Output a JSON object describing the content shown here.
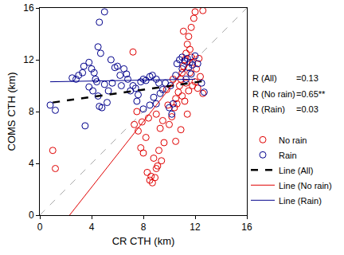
{
  "chart_data": {
    "type": "scatter",
    "xlabel": "CR CTH (km)",
    "ylabel": "COMS CTH (km)",
    "xlim": [
      0,
      16
    ],
    "ylim": [
      0,
      16
    ],
    "xticks": [
      0,
      4,
      8,
      12,
      16
    ],
    "yticks": [
      0,
      4,
      8,
      12,
      16
    ],
    "grid": false,
    "legend": "right",
    "annotations": [
      {
        "label": "R (All)",
        "value": "=0.13"
      },
      {
        "label": "R (No rain)",
        "value": "=0.65**"
      },
      {
        "label": "R (Rain)",
        "value": "=0.03"
      }
    ],
    "series": [
      {
        "name": "No rain",
        "type": "scatter",
        "color": "#e00000",
        "marker": "circle-open",
        "x": [
          1,
          1.2,
          7.2,
          7.5,
          7.3,
          7.6,
          7.8,
          8,
          8.2,
          7.9,
          8.3,
          8.5,
          8.6,
          8.7,
          8.9,
          9,
          9.1,
          8.8,
          9.2,
          9.4,
          9.6,
          9.3,
          9.5,
          9,
          8.4,
          10,
          10.2,
          10.4,
          10.5,
          10.7,
          10.8,
          10.9,
          11,
          11.1,
          11.2,
          11.3,
          11.4,
          11.5,
          11.7,
          11.9,
          12,
          12.6,
          11.6,
          11.8,
          11,
          11.2,
          11.5,
          11.8,
          12,
          12.2,
          12.4,
          12.6,
          11.3,
          10.6,
          9.8,
          10.3,
          11.6,
          12.1,
          12.3,
          11.4,
          10.9,
          10.5,
          9.9,
          11.1,
          11.7
        ],
        "y": [
          5,
          3.6,
          12.6,
          8,
          7,
          6.5,
          5.2,
          4.8,
          6,
          7.2,
          3.3,
          2.7,
          3,
          2.5,
          2.9,
          3.6,
          3.8,
          4.4,
          5,
          4.2,
          5.6,
          6.7,
          7.3,
          7.8,
          7.5,
          7,
          7.6,
          8.3,
          9,
          9.5,
          10,
          10.5,
          11,
          11.5,
          12,
          12.5,
          13.2,
          13.8,
          14.5,
          15.2,
          15.7,
          15.8,
          12.8,
          11.8,
          9.2,
          8.8,
          9.6,
          10,
          10.3,
          9.8,
          10.7,
          9.4,
          10.2,
          8.6,
          9.7,
          10.5,
          11,
          11.3,
          12.1,
          7.8,
          6.6,
          5.7,
          8.5,
          14.2,
          12.2
        ]
      },
      {
        "name": "Rain",
        "type": "scatter",
        "color": "#00008b",
        "marker": "circle-open",
        "x": [
          0.8,
          1.2,
          3.5,
          3.8,
          4.5,
          4.7,
          4.6,
          5,
          4.3,
          4.1,
          4.5,
          4.6,
          4.8,
          5.2,
          3,
          3.3,
          3.4,
          3.8,
          4,
          4.2,
          2.5,
          2.8,
          5.5,
          5.8,
          6,
          6.2,
          6.5,
          6.7,
          7,
          7.2,
          7.4,
          7.6,
          7.8,
          8,
          8.2,
          8.5,
          8.7,
          9,
          9.2,
          9.5,
          9.7,
          10,
          10.2,
          10.3,
          9,
          8.5,
          8,
          7.5,
          10.6,
          10.8,
          11,
          11.2,
          11.4,
          11.6,
          11.8,
          12,
          12.2,
          11.5,
          11,
          10.5,
          11.3,
          11.7,
          12.5,
          12.7,
          6.8,
          6.3,
          5.3,
          5.6,
          8.8,
          9.3,
          10.1,
          5,
          4.4
        ],
        "y": [
          8.5,
          8.1,
          6.9,
          9.9,
          13,
          12.5,
          14.9,
          15.7,
          10.5,
          9.6,
          9.2,
          8.4,
          8.3,
          8.7,
          10.8,
          11,
          11.5,
          11.8,
          11.3,
          11,
          10.6,
          10.5,
          12,
          11.4,
          11.5,
          10.8,
          11.3,
          10.9,
          9.6,
          10,
          9.8,
          9.3,
          10.3,
          10.5,
          10.4,
          10.7,
          10.8,
          10.5,
          10.2,
          9.7,
          10.2,
          8.3,
          7.8,
          8.6,
          8.6,
          8.5,
          8.2,
          8.8,
          11.7,
          12,
          12.2,
          11.9,
          12.1,
          11.8,
          11.6,
          12.3,
          11.7,
          11.4,
          11.3,
          10.8,
          10.5,
          10.9,
          10.2,
          9.5,
          10.5,
          10,
          9.6,
          10.2,
          9.1,
          9.4,
          10,
          10.1,
          10.3
        ]
      },
      {
        "name": "Line (All)",
        "type": "line",
        "color": "#000000",
        "line_style": "dash",
        "x": [
          1,
          13
        ],
        "y": [
          8.7,
          10.4
        ]
      },
      {
        "name": "Line (No rain)",
        "type": "line",
        "color": "#e00000",
        "line_style": "solid",
        "x": [
          2.3,
          12
        ],
        "y": [
          0,
          12.3
        ]
      },
      {
        "name": "Line (Rain)",
        "type": "line",
        "color": "#00008b",
        "line_style": "solid",
        "x": [
          0.8,
          12
        ],
        "y": [
          10.3,
          10.5
        ]
      },
      {
        "type": "line",
        "color": "#aaaaaa",
        "line_style": "dash",
        "x": [
          0,
          16
        ],
        "y": [
          0,
          16
        ]
      }
    ]
  }
}
